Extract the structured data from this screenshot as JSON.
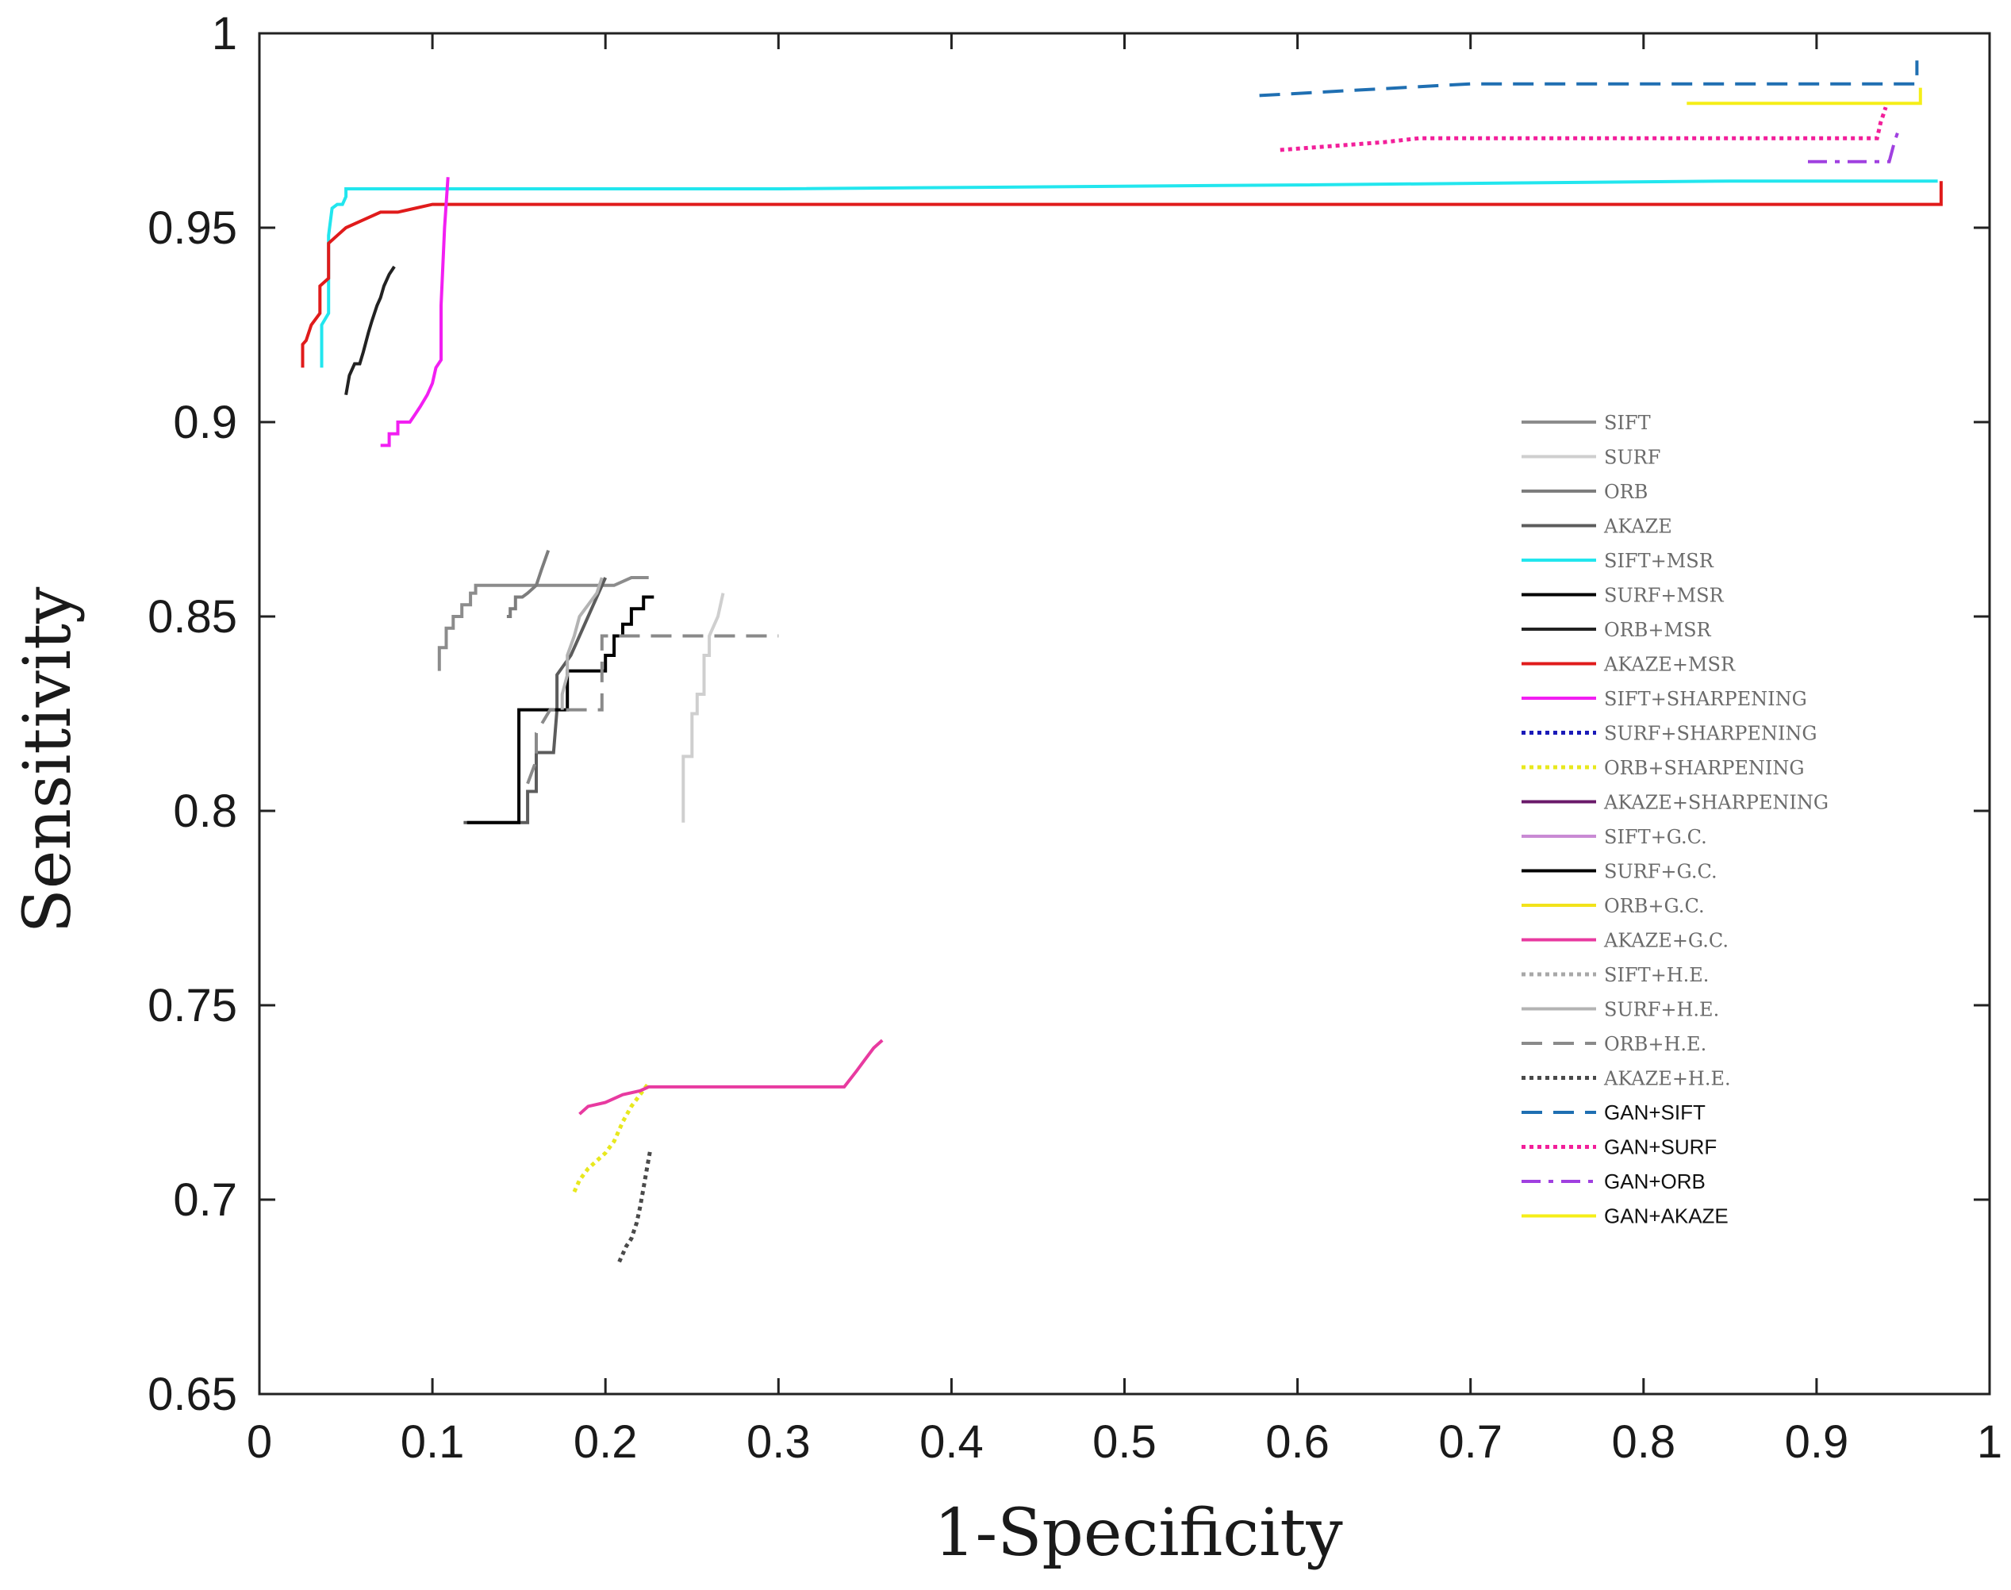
{
  "chart_data": {
    "type": "line",
    "title": "",
    "xlabel": "1-Specificity",
    "ylabel": "Sensitivity",
    "xlim": [
      0,
      1
    ],
    "ylim": [
      0.65,
      1
    ],
    "xticks": [
      "0",
      "0.1",
      "0.2",
      "0.3",
      "0.4",
      "0.5",
      "0.6",
      "0.7",
      "0.8",
      "0.9",
      "1"
    ],
    "yticks": [
      "0.65",
      "0.7",
      "0.75",
      "0.8",
      "0.85",
      "0.9",
      "0.95",
      "1"
    ],
    "legend_position": "right",
    "series": [
      {
        "name": "SIFT",
        "color": "#8c8c8c",
        "dash": "solid",
        "legend_style": "serif",
        "x": [
          0.104,
          0.104,
          0.108,
          0.108,
          0.112,
          0.112,
          0.117,
          0.117,
          0.122,
          0.122,
          0.125,
          0.125,
          0.128,
          0.128,
          0.135,
          0.165,
          0.205,
          0.215,
          0.225
        ],
        "y": [
          0.836,
          0.842,
          0.842,
          0.847,
          0.847,
          0.85,
          0.85,
          0.853,
          0.853,
          0.856,
          0.856,
          0.858,
          0.858,
          0.858,
          0.858,
          0.858,
          0.858,
          0.86,
          0.86
        ]
      },
      {
        "name": "SURF",
        "color": "#cfcfcf",
        "dash": "solid",
        "legend_style": "serif",
        "x": [
          0.245,
          0.245,
          0.25,
          0.25,
          0.253,
          0.253,
          0.257,
          0.257,
          0.26,
          0.26,
          0.265,
          0.268
        ],
        "y": [
          0.797,
          0.814,
          0.814,
          0.825,
          0.825,
          0.83,
          0.83,
          0.84,
          0.84,
          0.845,
          0.85,
          0.856
        ]
      },
      {
        "name": "ORB",
        "color": "#7d7d7d",
        "dash": "solid",
        "legend_style": "serif",
        "x": [
          0.143,
          0.145,
          0.145,
          0.148,
          0.148,
          0.152,
          0.155,
          0.16,
          0.163,
          0.167
        ],
        "y": [
          0.85,
          0.85,
          0.852,
          0.852,
          0.855,
          0.855,
          0.856,
          0.858,
          0.862,
          0.867
        ]
      },
      {
        "name": "AKAZE",
        "color": "#5c5c5c",
        "dash": "solid",
        "legend_style": "serif",
        "x": [
          0.118,
          0.145,
          0.155,
          0.155,
          0.16,
          0.16,
          0.17,
          0.172,
          0.172,
          0.18,
          0.185,
          0.19,
          0.195,
          0.2
        ],
        "y": [
          0.797,
          0.797,
          0.797,
          0.805,
          0.805,
          0.815,
          0.815,
          0.826,
          0.835,
          0.84,
          0.845,
          0.85,
          0.855,
          0.86
        ]
      },
      {
        "name": "SIFT+MSR",
        "color": "#22e6ee",
        "dash": "solid",
        "legend_style": "serif",
        "x": [
          0.036,
          0.036,
          0.04,
          0.04,
          0.042,
          0.045,
          0.048,
          0.05,
          0.05,
          0.3,
          0.6,
          0.85,
          0.97
        ],
        "y": [
          0.914,
          0.925,
          0.928,
          0.948,
          0.955,
          0.956,
          0.956,
          0.958,
          0.96,
          0.96,
          0.961,
          0.962,
          0.962
        ]
      },
      {
        "name": "SURF+MSR",
        "color": "#000000",
        "dash": "solid",
        "legend_style": "serif",
        "x": [
          0.12,
          0.15,
          0.15,
          0.178,
          0.178,
          0.2,
          0.2,
          0.205,
          0.205,
          0.21,
          0.21,
          0.215,
          0.215,
          0.222,
          0.222,
          0.228
        ],
        "y": [
          0.797,
          0.797,
          0.826,
          0.826,
          0.836,
          0.836,
          0.84,
          0.84,
          0.845,
          0.845,
          0.848,
          0.848,
          0.852,
          0.852,
          0.855,
          0.855
        ]
      },
      {
        "name": "ORB+MSR",
        "color": "#222222",
        "dash": "solid",
        "legend_style": "serif",
        "x": [
          0.05,
          0.052,
          0.055,
          0.058,
          0.06,
          0.063,
          0.065,
          0.068,
          0.07,
          0.072,
          0.075,
          0.078
        ],
        "y": [
          0.907,
          0.912,
          0.915,
          0.915,
          0.918,
          0.923,
          0.926,
          0.93,
          0.932,
          0.935,
          0.938,
          0.94
        ]
      },
      {
        "name": "AKAZE+MSR",
        "color": "#e01b1b",
        "dash": "solid",
        "legend_style": "serif",
        "x": [
          0.025,
          0.025,
          0.027,
          0.03,
          0.035,
          0.035,
          0.04,
          0.04,
          0.045,
          0.05,
          0.06,
          0.07,
          0.08,
          0.09,
          0.1,
          0.3,
          0.6,
          0.9,
          0.972,
          0.972
        ],
        "y": [
          0.914,
          0.92,
          0.921,
          0.925,
          0.928,
          0.935,
          0.937,
          0.946,
          0.948,
          0.95,
          0.952,
          0.954,
          0.954,
          0.955,
          0.956,
          0.956,
          0.956,
          0.956,
          0.956,
          0.962
        ]
      },
      {
        "name": "SIFT+SHARPENING",
        "color": "#f21ff2",
        "dash": "solid",
        "legend_style": "serif",
        "x": [
          0.07,
          0.075,
          0.075,
          0.08,
          0.08,
          0.087,
          0.09,
          0.093,
          0.097,
          0.1,
          0.102,
          0.105,
          0.105,
          0.107,
          0.109
        ],
        "y": [
          0.894,
          0.894,
          0.897,
          0.897,
          0.9,
          0.9,
          0.902,
          0.904,
          0.907,
          0.91,
          0.914,
          0.916,
          0.93,
          0.95,
          0.963
        ]
      },
      {
        "name": "SURF+SHARPENING",
        "color": "#1a1ab8",
        "dash": "dot",
        "legend_style": "serif",
        "x": [],
        "y": []
      },
      {
        "name": "ORB+SHARPENING",
        "color": "#e8e81e",
        "dash": "dot",
        "legend_style": "serif",
        "x": [
          0.182,
          0.185,
          0.19,
          0.195,
          0.2,
          0.205,
          0.21,
          0.215,
          0.22,
          0.225
        ],
        "y": [
          0.702,
          0.705,
          0.708,
          0.71,
          0.712,
          0.715,
          0.72,
          0.724,
          0.727,
          0.73
        ]
      },
      {
        "name": "AKAZE+SHARPENING",
        "color": "#6a1a6a",
        "dash": "solid",
        "legend_style": "serif",
        "x": [],
        "y": []
      },
      {
        "name": "SIFT+G.C.",
        "color": "#c98ad4",
        "dash": "solid",
        "legend_style": "serif",
        "x": [],
        "y": []
      },
      {
        "name": "SURF+G.C.",
        "color": "#000000",
        "dash": "solid",
        "legend_style": "serif",
        "x": [],
        "y": []
      },
      {
        "name": "ORB+G.C.",
        "color": "#f2e21a",
        "dash": "solid",
        "legend_style": "serif",
        "x": [],
        "y": []
      },
      {
        "name": "AKAZE+G.C.",
        "color": "#e83aa0",
        "dash": "solid",
        "legend_style": "serif",
        "x": [
          0.185,
          0.19,
          0.2,
          0.21,
          0.22,
          0.225,
          0.3,
          0.338,
          0.345,
          0.35,
          0.355,
          0.36
        ],
        "y": [
          0.722,
          0.724,
          0.725,
          0.727,
          0.728,
          0.729,
          0.729,
          0.729,
          0.733,
          0.736,
          0.739,
          0.741
        ]
      },
      {
        "name": "SIFT+H.E.",
        "color": "#a8a8a8",
        "dash": "dot",
        "legend_style": "serif",
        "x": [],
        "y": []
      },
      {
        "name": "SURF+H.E.",
        "color": "#b3b3b3",
        "dash": "solid",
        "legend_style": "serif",
        "x": [
          0.175,
          0.175,
          0.178,
          0.178,
          0.182,
          0.185,
          0.19,
          0.195,
          0.198
        ],
        "y": [
          0.826,
          0.83,
          0.835,
          0.84,
          0.845,
          0.85,
          0.853,
          0.856,
          0.86
        ]
      },
      {
        "name": "ORB+H.E.",
        "color": "#8a8a8a",
        "dash": "dashed",
        "legend_style": "serif",
        "x": [
          0.155,
          0.16,
          0.16,
          0.168,
          0.175,
          0.198,
          0.198,
          0.205,
          0.205,
          0.3
        ],
        "y": [
          0.807,
          0.813,
          0.82,
          0.826,
          0.826,
          0.826,
          0.845,
          0.845,
          0.845,
          0.845
        ]
      },
      {
        "name": "AKAZE+H.E.",
        "color": "#4a4a4a",
        "dash": "dot",
        "legend_style": "serif",
        "x": [
          0.208,
          0.212,
          0.215,
          0.218,
          0.22,
          0.222,
          0.224,
          0.226
        ],
        "y": [
          0.684,
          0.688,
          0.69,
          0.694,
          0.698,
          0.703,
          0.708,
          0.713
        ]
      },
      {
        "name": "GAN+SIFT",
        "color": "#1f6fb2",
        "dash": "dashed",
        "legend_style": "sans",
        "x": [
          0.578,
          0.7,
          0.8,
          0.9,
          0.958,
          0.958
        ],
        "y": [
          0.984,
          0.987,
          0.987,
          0.987,
          0.987,
          0.993
        ]
      },
      {
        "name": "GAN+SURF",
        "color": "#f21f9a",
        "dash": "dot",
        "legend_style": "sans",
        "x": [
          0.59,
          0.62,
          0.65,
          0.67,
          0.7,
          0.8,
          0.9,
          0.935,
          0.937,
          0.94
        ],
        "y": [
          0.97,
          0.971,
          0.972,
          0.973,
          0.973,
          0.973,
          0.973,
          0.973,
          0.977,
          0.981
        ]
      },
      {
        "name": "GAN+ORB",
        "color": "#a040e0",
        "dash": "dashdot",
        "legend_style": "sans",
        "x": [
          0.895,
          0.92,
          0.942,
          0.945,
          0.948
        ],
        "y": [
          0.967,
          0.967,
          0.967,
          0.972,
          0.976
        ]
      },
      {
        "name": "GAN+AKAZE",
        "color": "#f5ee18",
        "dash": "solid",
        "legend_style": "sans",
        "x": [
          0.825,
          0.9,
          0.96,
          0.96
        ],
        "y": [
          0.982,
          0.982,
          0.982,
          0.986
        ]
      }
    ]
  }
}
